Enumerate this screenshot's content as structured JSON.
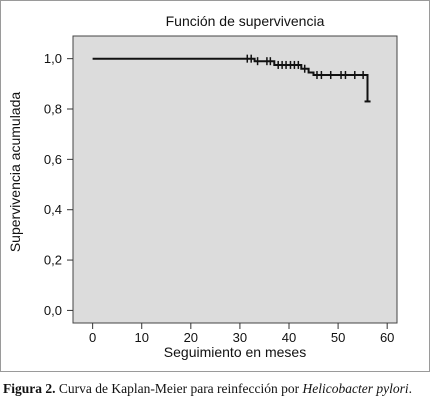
{
  "chart_data": {
    "type": "line",
    "title": "Función de supervivencia",
    "xlabel": "Seguimiento en meses",
    "ylabel": "Supervivencia acumulada",
    "xlim": [
      -4,
      62
    ],
    "ylim": [
      -0.05,
      1.09
    ],
    "x_ticks": [
      0,
      10,
      20,
      30,
      40,
      50,
      60
    ],
    "x_tick_labels": [
      "0",
      "10",
      "20",
      "30",
      "40",
      "50",
      "60"
    ],
    "y_ticks": [
      0.0,
      0.2,
      0.4,
      0.6,
      0.8,
      1.0
    ],
    "y_tick_labels": [
      "0,0",
      "0,2",
      "0,4",
      "0,6",
      "0,8",
      "1,0"
    ],
    "grid": false,
    "plot_background": "#dcdcdc",
    "line_color": "#111111",
    "series": [
      {
        "step_points": [
          [
            0,
            1.0
          ],
          [
            33,
            1.0
          ],
          [
            33,
            0.99
          ],
          [
            37,
            0.99
          ],
          [
            37,
            0.975
          ],
          [
            42.5,
            0.975
          ],
          [
            42.5,
            0.96
          ],
          [
            44,
            0.96
          ],
          [
            44,
            0.945
          ],
          [
            45,
            0.945
          ],
          [
            45,
            0.935
          ],
          [
            56,
            0.935
          ],
          [
            56,
            0.83
          ]
        ],
        "censored_x": [
          31.5,
          32.3,
          33.6,
          35.5,
          36.2,
          37.8,
          38.6,
          39.4,
          40.3,
          41.1,
          41.9,
          43.2,
          45.7,
          46.6,
          48.5,
          50.6,
          51.5,
          53.4,
          55.1
        ],
        "end_marker_x": 56
      }
    ]
  },
  "caption": {
    "label": "Figura 2.",
    "text": " Curva de Kaplan-Meier para reinfección por ",
    "italic": "Helicobacter pylori",
    "end": "."
  }
}
